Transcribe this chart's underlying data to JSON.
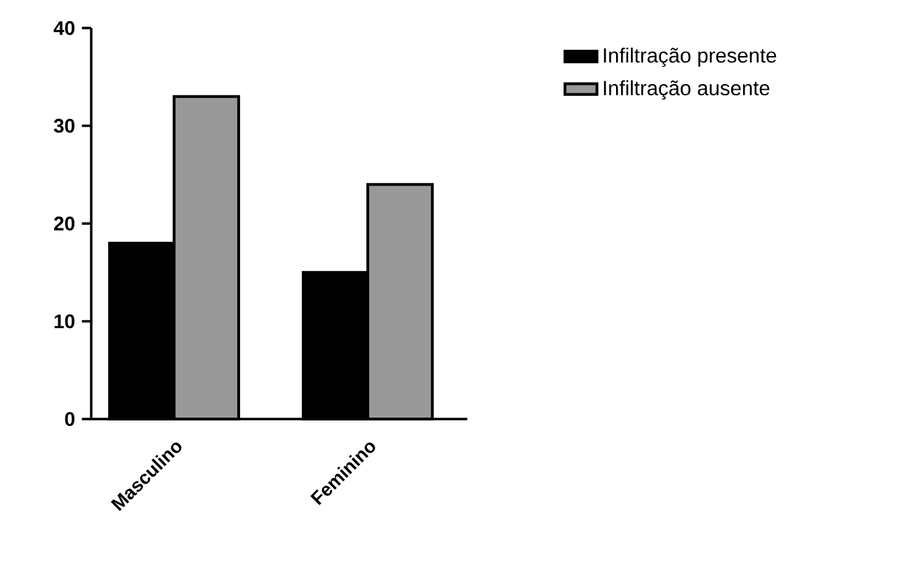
{
  "chart_data": {
    "type": "bar",
    "categories": [
      "Masculino",
      "Feminino"
    ],
    "series": [
      {
        "name": "Infiltração presente",
        "color": "#000000",
        "values": [
          18,
          15
        ]
      },
      {
        "name": "Infiltração ausente",
        "color": "#999999",
        "values": [
          33,
          24
        ]
      }
    ],
    "ylim": [
      0,
      40
    ],
    "yticks": [
      0,
      10,
      20,
      30,
      40
    ],
    "legend": "top right"
  }
}
